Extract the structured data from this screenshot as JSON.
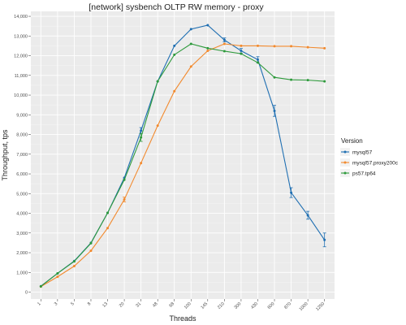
{
  "chart_data": {
    "type": "line",
    "title": "[network] sysbench OLTP RW memory - proxy",
    "xlabel": "Threads",
    "ylabel": "Throughput, tps",
    "categories": [
      "1",
      "3",
      "5",
      "8",
      "13",
      "20",
      "31",
      "48",
      "68",
      "100",
      "145",
      "210",
      "300",
      "430",
      "600",
      "870",
      "1000",
      "1250"
    ],
    "y_ticks": [
      0,
      1000,
      2000,
      3000,
      4000,
      5000,
      6000,
      7000,
      8000,
      9000,
      10000,
      11000,
      12000,
      13000,
      14000
    ],
    "y_tick_labels": [
      "0",
      "1,000",
      "2,000",
      "3,000",
      "4,000",
      "5,000",
      "6,000",
      "7,000",
      "8,000",
      "9,000",
      "10,000",
      "11,000",
      "12,000",
      "13,000",
      "14,000"
    ],
    "ylim": [
      -350,
      14250
    ],
    "grid": true,
    "legend": {
      "title": "Version",
      "placement": "right",
      "entries": [
        "mysql57",
        "mysql57.proxy200c",
        "ps57.tp64"
      ]
    },
    "series": [
      {
        "name": "mysql57",
        "color": "#1f6fb2",
        "values": [
          300,
          950,
          1580,
          2500,
          4020,
          5800,
          8200,
          10700,
          12500,
          13350,
          13550,
          12800,
          12250,
          11800,
          9200,
          5050,
          3900,
          2650
        ],
        "errors": [
          0,
          0,
          0,
          0,
          0,
          0,
          150,
          0,
          0,
          0,
          0,
          100,
          120,
          150,
          280,
          250,
          200,
          350
        ]
      },
      {
        "name": "mysql57.proxy200c",
        "color": "#f28a2e",
        "values": [
          280,
          780,
          1320,
          2100,
          3250,
          4700,
          6550,
          8450,
          10200,
          11450,
          12250,
          12600,
          12500,
          12500,
          12480,
          12480,
          12430,
          12380
        ],
        "errors": [
          0,
          0,
          0,
          0,
          0,
          120,
          0,
          0,
          0,
          0,
          0,
          0,
          0,
          0,
          0,
          0,
          0,
          0
        ]
      },
      {
        "name": "ps57.tp64",
        "color": "#2e9a3c",
        "values": [
          290,
          950,
          1560,
          2480,
          4020,
          5700,
          7850,
          10700,
          12050,
          12600,
          12380,
          12230,
          12100,
          11650,
          10900,
          10780,
          10760,
          10700
        ],
        "errors": [
          0,
          0,
          0,
          0,
          0,
          0,
          200,
          0,
          0,
          0,
          0,
          0,
          0,
          0,
          0,
          0,
          0,
          0
        ]
      }
    ]
  }
}
